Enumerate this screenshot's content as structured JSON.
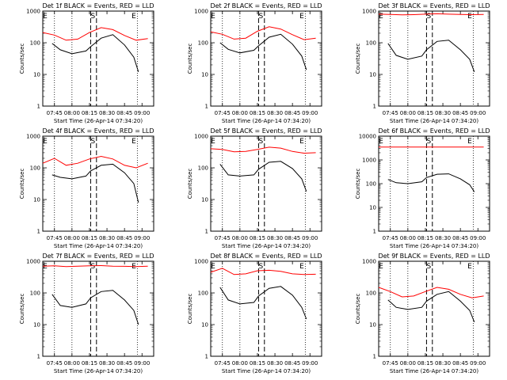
{
  "chart_data": [
    {
      "type": "line",
      "title": "Det 1f BLACK = Events, RED = LLD",
      "xlabel": "Start Time (26-Apr-14 07:34:20)",
      "ylabel": "Counts/sec",
      "x_ticks": [
        "07:45",
        "08:00",
        "08:15",
        "08:30",
        "08:45",
        "09:00"
      ],
      "y_ticks": [
        "1",
        "10",
        "100",
        "1000"
      ],
      "marker_labels": [
        "E",
        "S",
        "E"
      ],
      "series": [
        {
          "color": "#ff0000",
          "x_min": [
            0,
            10,
            20,
            30,
            40,
            50,
            60,
            70,
            80,
            90
          ],
          "values": [
            210,
            175,
            120,
            130,
            210,
            300,
            260,
            170,
            120,
            135
          ]
        },
        {
          "color": "#000000",
          "x_min": [
            8,
            15,
            25,
            37,
            41,
            50,
            60,
            70,
            78,
            82
          ],
          "values": [
            95,
            60,
            45,
            55,
            75,
            140,
            180,
            85,
            35,
            12
          ]
        }
      ]
    },
    {
      "type": "line",
      "title": "Det 2f BLACK = Events, RED = LLD",
      "xlabel": "Start Time (26-Apr-14 07:34:20)",
      "ylabel": "Counts/sec",
      "x_ticks": [
        "07:45",
        "08:00",
        "08:15",
        "08:30",
        "08:45",
        "09:00"
      ],
      "y_ticks": [
        "1",
        "10",
        "100",
        "1000"
      ],
      "marker_labels": [
        "E",
        "S",
        "E"
      ],
      "series": [
        {
          "color": "#ff0000",
          "x_min": [
            0,
            10,
            20,
            30,
            40,
            50,
            60,
            70,
            80,
            90
          ],
          "values": [
            220,
            185,
            130,
            140,
            230,
            320,
            270,
            180,
            125,
            140
          ]
        },
        {
          "color": "#000000",
          "x_min": [
            8,
            15,
            25,
            37,
            41,
            50,
            60,
            70,
            78,
            82
          ],
          "values": [
            100,
            62,
            48,
            58,
            80,
            150,
            185,
            90,
            38,
            14
          ]
        }
      ]
    },
    {
      "type": "line",
      "title": "Det 3f BLACK = Events, RED = LLD",
      "xlabel": "Start Time (26-Apr-14 07:34:20)",
      "ylabel": "Counts/sec",
      "x_ticks": [
        "07:45",
        "08:00",
        "08:15",
        "08:30",
        "08:45",
        "09:00"
      ],
      "y_ticks": [
        "1",
        "10",
        "100",
        "1000"
      ],
      "marker_labels": [
        "E",
        "S",
        "E"
      ],
      "series": [
        {
          "color": "#ff0000",
          "x_min": [
            0,
            10,
            20,
            30,
            40,
            50,
            60,
            70,
            80,
            90
          ],
          "values": [
            800,
            780,
            760,
            770,
            800,
            820,
            800,
            780,
            770,
            780
          ]
        },
        {
          "color": "#000000",
          "x_min": [
            8,
            15,
            25,
            37,
            41,
            50,
            60,
            70,
            78,
            82
          ],
          "values": [
            95,
            40,
            30,
            38,
            60,
            110,
            120,
            60,
            30,
            12
          ]
        }
      ]
    },
    {
      "type": "line",
      "title": "Det 4f BLACK = Events, RED = LLD",
      "xlabel": "Start Time (26-Apr-14 07:34:20)",
      "ylabel": "Counts/sec",
      "x_ticks": [
        "07:45",
        "08:00",
        "08:15",
        "08:30",
        "08:45",
        "09:00"
      ],
      "y_ticks": [
        "1",
        "10",
        "100",
        "1000"
      ],
      "marker_labels": [
        "E",
        "S",
        "E"
      ],
      "series": [
        {
          "color": "#ff0000",
          "x_min": [
            0,
            10,
            20,
            30,
            40,
            50,
            60,
            70,
            80,
            90
          ],
          "values": [
            140,
            200,
            120,
            140,
            190,
            230,
            190,
            120,
            100,
            140
          ]
        },
        {
          "color": "#000000",
          "x_min": [
            8,
            15,
            25,
            37,
            41,
            50,
            60,
            70,
            78,
            82
          ],
          "values": [
            60,
            50,
            45,
            55,
            80,
            120,
            130,
            70,
            32,
            8
          ]
        }
      ]
    },
    {
      "type": "line",
      "title": "Det 5f BLACK = Events, RED = LLD",
      "xlabel": "Start Time (26-Apr-14 07:34:20)",
      "ylabel": "Counts/sec",
      "x_ticks": [
        "07:45",
        "08:00",
        "08:15",
        "08:30",
        "08:45",
        "09:00"
      ],
      "y_ticks": [
        "1",
        "10",
        "100",
        "1000"
      ],
      "marker_labels": [
        "E",
        "S",
        "E"
      ],
      "series": [
        {
          "color": "#ff0000",
          "x_min": [
            0,
            10,
            20,
            30,
            40,
            50,
            60,
            70,
            80,
            90
          ],
          "values": [
            400,
            380,
            320,
            330,
            380,
            450,
            420,
            330,
            290,
            300
          ]
        },
        {
          "color": "#000000",
          "x_min": [
            8,
            15,
            25,
            37,
            41,
            50,
            60,
            70,
            78,
            82
          ],
          "values": [
            130,
            60,
            55,
            60,
            90,
            150,
            160,
            95,
            45,
            18
          ]
        }
      ]
    },
    {
      "type": "line",
      "title": "Det 6f BLACK = Events, RED = LLD",
      "xlabel": "Start Time (26-Apr-14 07:34:20)",
      "ylabel": "Counts/sec",
      "x_ticks": [
        "07:45",
        "08:00",
        "08:15",
        "08:30",
        "08:45",
        "09:00"
      ],
      "y_ticks": [
        "1",
        "10",
        "100",
        "1000",
        "10000"
      ],
      "marker_labels": [
        "E",
        "S",
        "E"
      ],
      "series": [
        {
          "color": "#ff0000",
          "x_min": [
            0,
            90
          ],
          "values": [
            3500,
            3500
          ]
        },
        {
          "color": "#000000",
          "x_min": [
            8,
            15,
            25,
            37,
            41,
            50,
            60,
            70,
            78,
            82
          ],
          "values": [
            150,
            110,
            100,
            120,
            180,
            250,
            260,
            160,
            90,
            45
          ]
        }
      ]
    },
    {
      "type": "line",
      "title": "Det 7f BLACK = Events, RED = LLD",
      "xlabel": "Start Time (26-Apr-14 07:34:20)",
      "ylabel": "Counts/sec",
      "x_ticks": [
        "07:45",
        "08:00",
        "08:15",
        "08:30",
        "08:45",
        "09:00"
      ],
      "y_ticks": [
        "1",
        "10",
        "100",
        "1000"
      ],
      "marker_labels": [
        "E",
        "S",
        "E"
      ],
      "series": [
        {
          "color": "#ff0000",
          "x_min": [
            0,
            10,
            20,
            30,
            40,
            50,
            60,
            70,
            80,
            90
          ],
          "values": [
            700,
            720,
            680,
            700,
            720,
            730,
            700,
            690,
            680,
            700
          ]
        },
        {
          "color": "#000000",
          "x_min": [
            8,
            15,
            25,
            37,
            41,
            50,
            60,
            70,
            78,
            82
          ],
          "values": [
            90,
            40,
            35,
            45,
            70,
            110,
            120,
            60,
            28,
            10
          ]
        }
      ]
    },
    {
      "type": "line",
      "title": "Det 8f BLACK = Events, RED = LLD",
      "xlabel": "Start Time (26-Apr-14 07:34:20)",
      "ylabel": "Counts/sec",
      "x_ticks": [
        "07:45",
        "08:00",
        "08:15",
        "08:30",
        "08:45",
        "09:00"
      ],
      "y_ticks": [
        "1",
        "10",
        "100",
        "1000"
      ],
      "marker_labels": [
        "E",
        "S",
        "E"
      ],
      "series": [
        {
          "color": "#ff0000",
          "x_min": [
            0,
            10,
            20,
            30,
            40,
            50,
            60,
            70,
            80,
            90
          ],
          "values": [
            450,
            600,
            380,
            400,
            500,
            520,
            480,
            400,
            380,
            390
          ]
        },
        {
          "color": "#000000",
          "x_min": [
            8,
            15,
            25,
            37,
            41,
            50,
            60,
            70,
            78,
            82
          ],
          "values": [
            150,
            60,
            45,
            50,
            80,
            140,
            160,
            85,
            35,
            15
          ]
        }
      ]
    },
    {
      "type": "line",
      "title": "Det 9f BLACK = Events, RED = LLD",
      "xlabel": "Start Time (26-Apr-14 07:34:20)",
      "ylabel": "Counts/sec",
      "x_ticks": [
        "07:45",
        "08:00",
        "08:15",
        "08:30",
        "08:45",
        "09:00"
      ],
      "y_ticks": [
        "1",
        "10",
        "100",
        "1000"
      ],
      "marker_labels": [
        "E",
        "S",
        "E"
      ],
      "series": [
        {
          "color": "#ff0000",
          "x_min": [
            0,
            10,
            20,
            30,
            40,
            50,
            60,
            70,
            80,
            90
          ],
          "values": [
            150,
            110,
            75,
            80,
            110,
            150,
            130,
            90,
            70,
            80
          ]
        },
        {
          "color": "#000000",
          "x_min": [
            8,
            15,
            25,
            37,
            41,
            50,
            60,
            70,
            78,
            82
          ],
          "values": [
            60,
            35,
            30,
            35,
            55,
            90,
            110,
            55,
            28,
            12
          ]
        }
      ]
    }
  ]
}
